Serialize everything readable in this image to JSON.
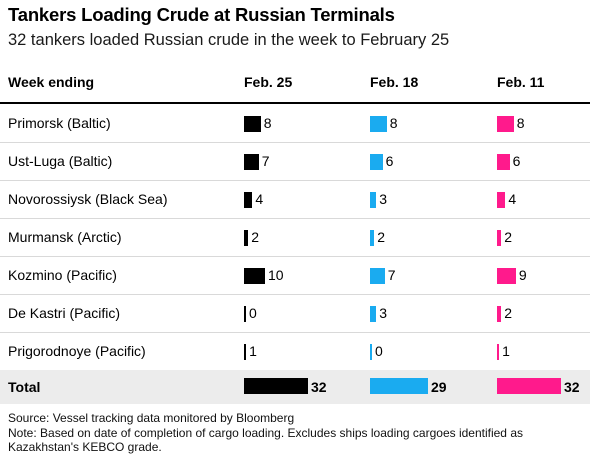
{
  "title": "Tankers Loading Crude at Russian Terminals",
  "subtitle": "32 tankers loaded Russian crude in the week to February 25",
  "source": "Source: Vessel tracking data monitored by Bloomberg",
  "note": "Note: Based on date of completion of cargo loading. Excludes ships loading cargoes identified as Kazakhstan's KEBCO grade.",
  "colors": {
    "Feb. 25": "#000000",
    "Feb. 18": "#1aabf0",
    "Feb. 11": "#ff1a8c"
  },
  "chart_data": {
    "type": "table",
    "row_header": "Week ending",
    "columns": [
      "Feb. 25",
      "Feb. 18",
      "Feb. 11"
    ],
    "rows": [
      {
        "label": "Primorsk (Baltic)",
        "values": [
          8,
          8,
          8
        ]
      },
      {
        "label": "Ust-Luga (Baltic)",
        "values": [
          7,
          6,
          6
        ]
      },
      {
        "label": "Novorossiysk (Black Sea)",
        "values": [
          4,
          3,
          4
        ]
      },
      {
        "label": "Murmansk (Arctic)",
        "values": [
          2,
          2,
          2
        ]
      },
      {
        "label": "Kozmino (Pacific)",
        "values": [
          10,
          7,
          9
        ]
      },
      {
        "label": "De Kastri (Pacific)",
        "values": [
          0,
          3,
          2
        ]
      },
      {
        "label": "Prigorodnoye (Pacific)",
        "values": [
          1,
          0,
          1
        ]
      }
    ],
    "total": {
      "label": "Total",
      "values": [
        32,
        29,
        32
      ]
    }
  }
}
